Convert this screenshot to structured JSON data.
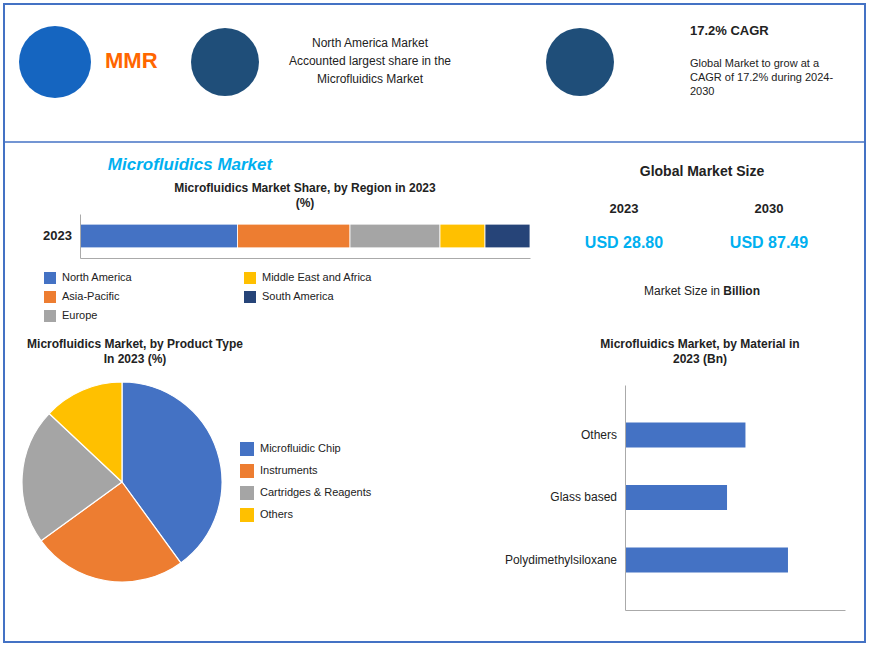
{
  "title": "Microfluidics Market",
  "annotations": [
    "MMR",
    "North America Market",
    "Accounted largest share in the",
    "Microfluidics Market",
    "17.2% CAGR",
    "Global Market to grow at a\nCAGR of 17.2% during 2024-\n2030",
    "Global Market Size",
    "2023",
    "2030",
    "USD 28.80",
    "USD 87.49",
    "Market Size in ",
    "Billion"
  ],
  "chart_data": [
    {
      "type": "bar",
      "title": "Microfluidics Market Share, by Region in 2023\n(%)",
      "orientation": "horizontal",
      "stacked": true,
      "categories": [
        "2023"
      ],
      "series": [
        {
          "name": "North America",
          "color": "#4472C4",
          "values": [
            35
          ]
        },
        {
          "name": "Asia-Pacific",
          "color": "#ED7D31",
          "values": [
            25
          ]
        },
        {
          "name": "Europe",
          "color": "#A5A5A5",
          "values": [
            20
          ]
        },
        {
          "name": "Middle East and Africa",
          "color": "#FFC000",
          "values": [
            10
          ]
        },
        {
          "name": "South America",
          "color": "#264478",
          "values": [
            10
          ]
        }
      ],
      "xlim": [
        0,
        100
      ],
      "tick_labels": "y",
      "legend": "bottom"
    },
    {
      "type": "pie",
      "title": "Microfluidics Market, by Product Type\nIn 2023 (%)",
      "categories": [
        "Microfluidic Chip",
        "Instruments",
        "Cartridges & Reagents",
        "Others"
      ],
      "values": [
        40,
        25,
        22,
        13
      ],
      "colors": [
        "#4472C4",
        "#ED7D31",
        "#A5A5A5",
        "#FFC000"
      ],
      "legend": "right"
    },
    {
      "type": "bar",
      "title": "Microfluidics Market, by Material in\n2023 (Bn)",
      "orientation": "horizontal",
      "categories": [
        "Others",
        "Glass based",
        "Polydimethylsiloxane"
      ],
      "values": [
        8.5,
        7.2,
        11.5
      ],
      "color": "#4472C4",
      "xlim": [
        0,
        15.525
      ],
      "tick_labels": "y"
    }
  ]
}
